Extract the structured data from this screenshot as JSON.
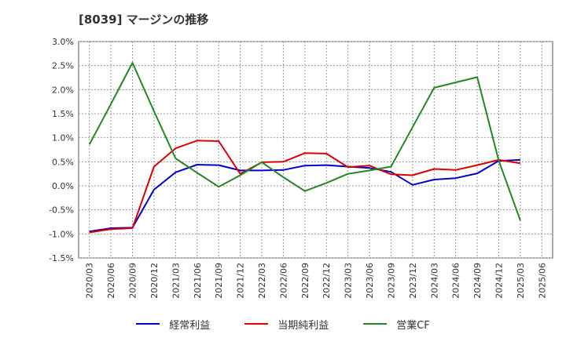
{
  "chart_data": {
    "type": "line",
    "title": "[8039]  マージンの推移",
    "xlabel": "",
    "ylabel": "",
    "ylim": [
      -1.5,
      3.0
    ],
    "yticks": [
      -1.5,
      -1.0,
      -0.5,
      0.0,
      0.5,
      1.0,
      1.5,
      2.0,
      2.5,
      3.0
    ],
    "ytick_labels": [
      "-1.5%",
      "-1.0%",
      "-0.5%",
      "0.0%",
      "0.5%",
      "1.0%",
      "1.5%",
      "2.0%",
      "2.5%",
      "3.0%"
    ],
    "categories": [
      "2020/03",
      "2020/06",
      "2020/09",
      "2020/12",
      "2021/03",
      "2021/06",
      "2021/09",
      "2021/12",
      "2022/03",
      "2022/06",
      "2022/09",
      "2022/12",
      "2023/03",
      "2023/06",
      "2023/09",
      "2023/12",
      "2024/03",
      "2024/06",
      "2024/09",
      "2024/12",
      "2025/03",
      "2025/06"
    ],
    "grid": true,
    "legend_position": "bottom",
    "series": [
      {
        "name": "経常利益",
        "color": "#0000cc",
        "values": [
          -0.95,
          -0.88,
          -0.87,
          -0.08,
          0.28,
          0.44,
          0.43,
          0.32,
          0.32,
          0.33,
          0.42,
          0.43,
          0.4,
          0.37,
          0.29,
          0.02,
          0.13,
          0.16,
          0.26,
          0.52,
          0.54,
          null
        ]
      },
      {
        "name": "当期純利益",
        "color": "#dd0000",
        "values": [
          -0.97,
          -0.9,
          -0.88,
          0.4,
          0.78,
          0.94,
          0.93,
          0.25,
          0.49,
          0.5,
          0.68,
          0.67,
          0.39,
          0.42,
          0.24,
          0.22,
          0.35,
          0.33,
          0.43,
          0.54,
          0.47,
          null
        ]
      },
      {
        "name": "営業CF",
        "color": "#228822",
        "values": [
          0.86,
          1.7,
          2.56,
          1.55,
          0.57,
          0.27,
          -0.02,
          0.22,
          0.49,
          0.18,
          -0.11,
          0.06,
          0.25,
          0.32,
          0.4,
          1.22,
          2.04,
          2.15,
          2.26,
          0.52,
          -0.72,
          null
        ]
      }
    ]
  }
}
